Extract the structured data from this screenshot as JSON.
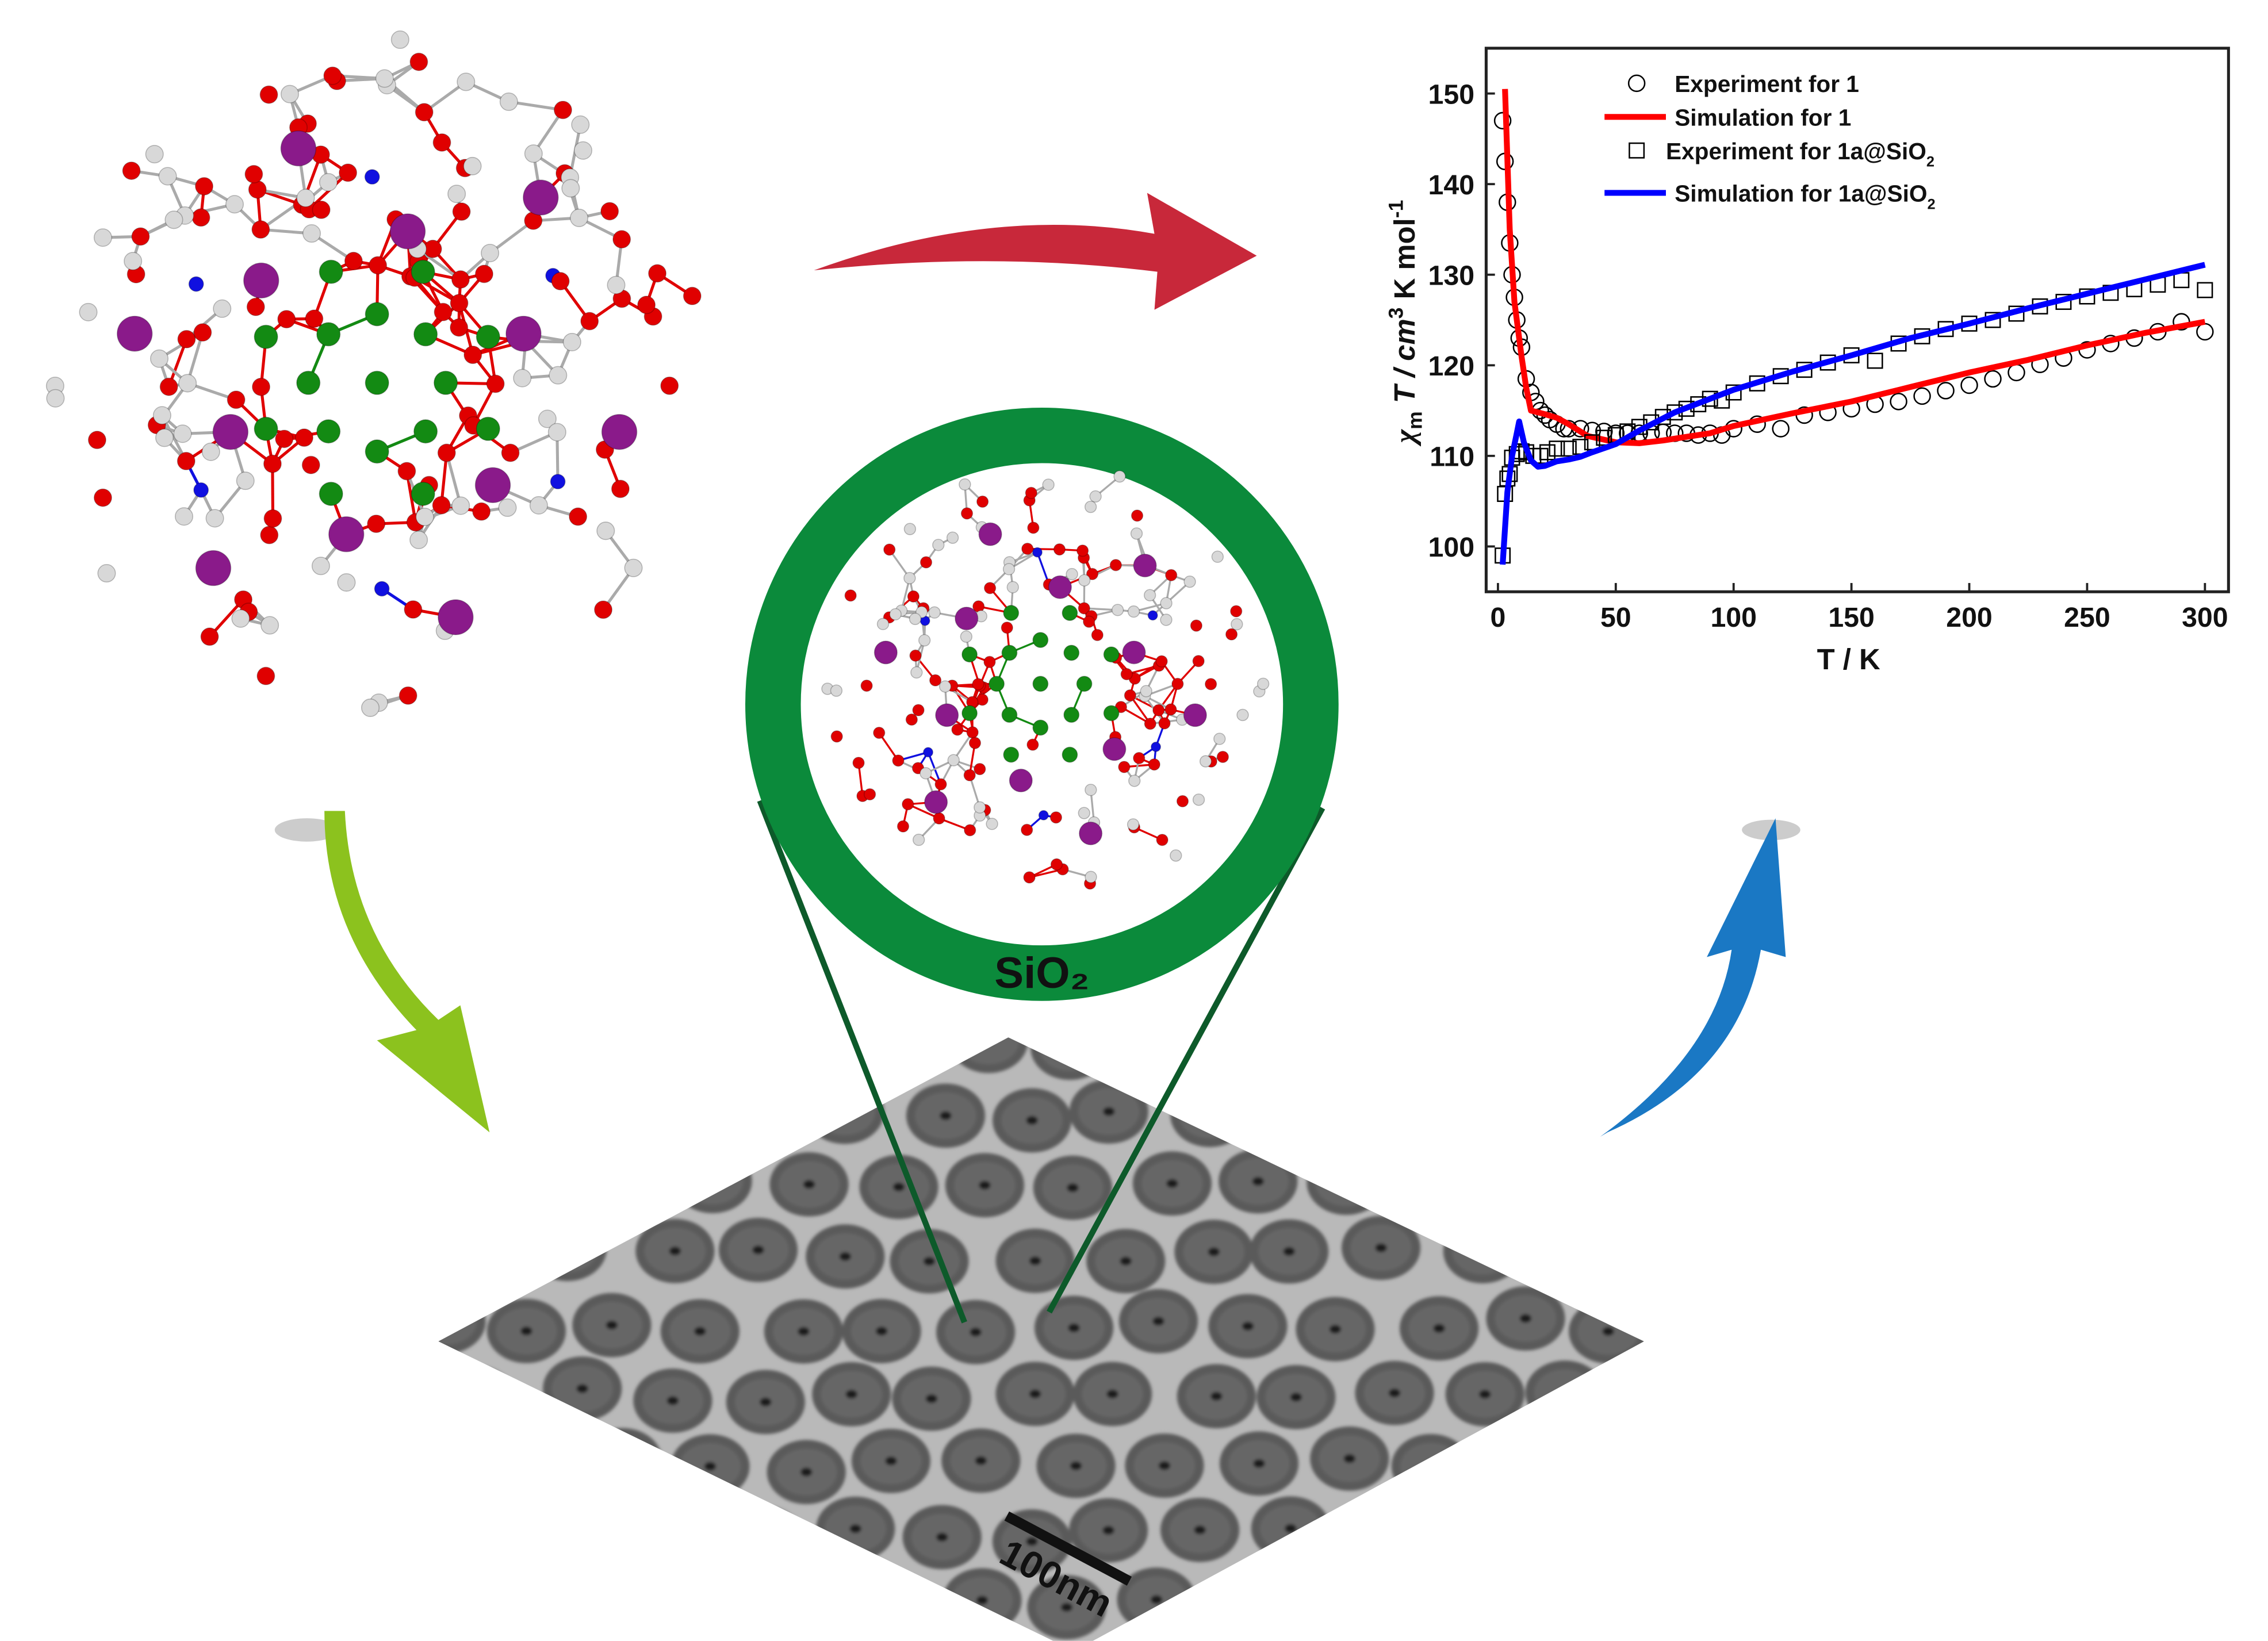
{
  "labels": {
    "shell": "SiO₂",
    "scale_bar": "100nm"
  },
  "colors": {
    "ring": "#0b8a3b",
    "zoom_lines": "#0d5a2a",
    "arrow_red": "#c8283a",
    "arrow_green": "#8cc21e",
    "arrow_blue": "#1a78c4",
    "atom_O": "#e00000",
    "atom_metal": "#8a1a8a",
    "atom_green": "#138a13",
    "atom_N": "#1010e0",
    "atom_C": "#d8d8d8"
  },
  "chart_data": {
    "type": "line",
    "xlabel": "T / K",
    "ylabel": {
      "chi": "χ",
      "sub": "m",
      "rest1": " T / cm",
      "sup3": "3",
      "rest2": " K mol",
      "supm1": "-1"
    },
    "xlim": [
      -5,
      310
    ],
    "ylim": [
      95,
      155
    ],
    "xticks": [
      "0",
      "50",
      "100",
      "150",
      "200",
      "250",
      "300"
    ],
    "yticks": [
      "100",
      "110",
      "120",
      "130",
      "140",
      "150"
    ],
    "legend_position": "top-left",
    "legend": [
      {
        "label": "Experiment for 1",
        "sub": ""
      },
      {
        "label": "Simulation for 1",
        "sub": ""
      },
      {
        "label": "Experiment for 1a@SiO",
        "sub": "2"
      },
      {
        "label": "Simulation for 1a@SiO",
        "sub": "2"
      }
    ],
    "series": [
      {
        "name": "Experiment for 1",
        "kind": "circle",
        "color": "#000000",
        "x": [
          2,
          3,
          4,
          5,
          6,
          7,
          8,
          9,
          10,
          12,
          14,
          16,
          18,
          20,
          22,
          25,
          28,
          30,
          35,
          40,
          45,
          50,
          55,
          60,
          65,
          70,
          75,
          80,
          85,
          90,
          95,
          100,
          110,
          120,
          130,
          140,
          150,
          160,
          170,
          180,
          190,
          200,
          210,
          220,
          230,
          240,
          250,
          260,
          270,
          280,
          290,
          300
        ],
        "y": [
          147,
          142.5,
          138,
          133.5,
          130,
          127.5,
          125,
          123,
          122,
          118.5,
          117,
          116,
          115,
          114.5,
          114,
          113.5,
          113,
          113,
          113,
          112.8,
          112.7,
          112.5,
          112.5,
          112.5,
          112.5,
          112.6,
          112.5,
          112.5,
          112.3,
          112.5,
          112.3,
          113,
          113.5,
          113,
          114.5,
          114.8,
          115.2,
          115.7,
          116,
          116.6,
          117.2,
          117.8,
          118.5,
          119.2,
          120.1,
          120.8,
          121.7,
          122.4,
          123,
          123.7,
          124.8,
          123.7
        ]
      },
      {
        "name": "Simulation for 1",
        "kind": "line",
        "color": "#ff0000",
        "x": [
          3,
          5,
          7,
          10,
          12,
          14,
          20,
          25,
          30,
          38,
          50,
          60,
          70,
          90,
          100,
          125,
          150,
          175,
          200,
          225,
          250,
          275,
          300
        ],
        "y": [
          150.5,
          135,
          127,
          121,
          117.5,
          115,
          114.6,
          114.2,
          113.5,
          112.2,
          111.5,
          111.4,
          111.7,
          112.5,
          113.3,
          114.7,
          116,
          117.6,
          119.2,
          120.6,
          122.2,
          123.6,
          124.8
        ]
      },
      {
        "name": "Experiment for 1a@SiO2",
        "kind": "square",
        "color": "#000000",
        "x": [
          2,
          3,
          4,
          5,
          6,
          8,
          10,
          12,
          15,
          18,
          21,
          25,
          30,
          35,
          40,
          45,
          50,
          55,
          60,
          65,
          70,
          75,
          80,
          85,
          90,
          95,
          100,
          110,
          120,
          130,
          140,
          150,
          160,
          170,
          180,
          190,
          200,
          210,
          220,
          230,
          240,
          250,
          260,
          270,
          280,
          290,
          300
        ],
        "y": [
          99,
          105.8,
          107.5,
          108,
          109.8,
          110.2,
          110.5,
          110.4,
          110,
          110,
          110.4,
          110.8,
          110.8,
          111,
          111.5,
          112,
          112.3,
          112.7,
          113.2,
          113.7,
          114.3,
          114.8,
          115.2,
          115.7,
          116.3,
          116.1,
          117,
          118,
          118.8,
          119.5,
          120.3,
          121.1,
          120.5,
          122.4,
          123.2,
          124,
          124.6,
          125,
          125.7,
          126.5,
          127,
          127.6,
          128,
          128.4,
          128.9,
          129.4,
          128.3
        ]
      },
      {
        "name": "Simulation for 1a@SiO2",
        "kind": "line",
        "color": "#0000ff",
        "x": [
          2,
          4,
          6,
          8,
          9,
          11,
          14,
          17,
          20,
          25,
          30,
          35,
          40,
          50,
          60,
          75,
          100,
          125,
          150,
          175,
          200,
          225,
          250,
          275,
          300
        ],
        "y": [
          98,
          106,
          110,
          112.5,
          113.8,
          111.5,
          109.5,
          108.8,
          108.9,
          109.4,
          109.6,
          109.9,
          110.4,
          111.3,
          112.8,
          114.8,
          117.3,
          119.3,
          121.1,
          123,
          124.6,
          126.3,
          127.9,
          129.5,
          131.1
        ]
      }
    ]
  }
}
